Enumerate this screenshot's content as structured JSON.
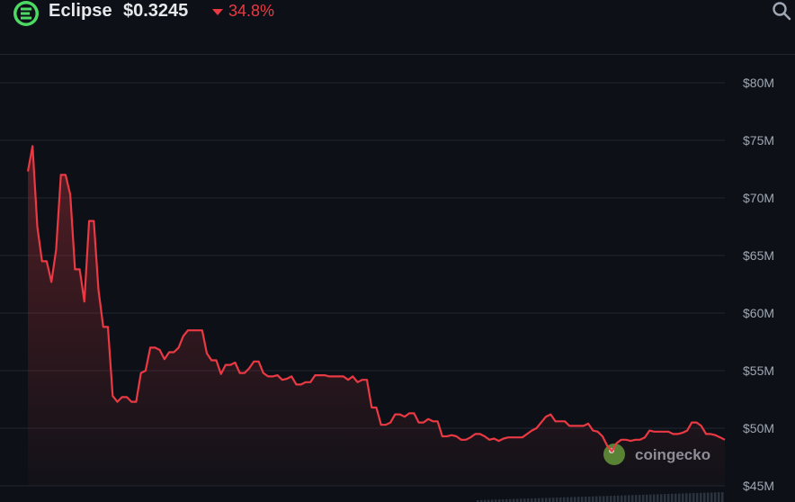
{
  "header": {
    "coin_name": "Eclipse",
    "price": "$0.3245",
    "change": "34.8%",
    "change_direction": "down",
    "logo_icon": "eclipse-logo-icon",
    "search_icon": "search-icon"
  },
  "colors": {
    "background": "#0d1117",
    "line": "#ea3943",
    "grid": "#1f2530",
    "logo": "#4cd964"
  },
  "watermark": "coingecko",
  "chart_data": {
    "type": "area",
    "title": "",
    "xlabel": "",
    "ylabel": "",
    "unit": "USD",
    "ylim": [
      45,
      80
    ],
    "y_ticks": [
      {
        "value": 80,
        "label": "$80M"
      },
      {
        "value": 75,
        "label": "$75M"
      },
      {
        "value": 70,
        "label": "$70M"
      },
      {
        "value": 65,
        "label": "$65M"
      },
      {
        "value": 60,
        "label": "$60M"
      },
      {
        "value": 55,
        "label": "$55M"
      },
      {
        "value": 50,
        "label": "$50M"
      },
      {
        "value": 45,
        "label": "$45M"
      }
    ],
    "grid": true,
    "series": [
      {
        "values": [
          72.3,
          74.5,
          67.5,
          64.5,
          64.5,
          62.7,
          65.5,
          72.0,
          72.0,
          70.3,
          63.8,
          63.8,
          61.0,
          68.0,
          68.0,
          62.0,
          58.8,
          58.8,
          52.8,
          52.3,
          52.7,
          52.7,
          52.3,
          52.3,
          54.8,
          55.0,
          57.0,
          57.0,
          56.8,
          56.0,
          56.6,
          56.6,
          57.0,
          58.0,
          58.5,
          58.5,
          58.5,
          58.5,
          56.5,
          55.9,
          55.9,
          54.7,
          55.5,
          55.5,
          55.7,
          54.8,
          54.8,
          55.2,
          55.8,
          55.8,
          54.8,
          54.5,
          54.5,
          54.6,
          54.2,
          54.3,
          54.5,
          53.8,
          53.8,
          54.0,
          54.0,
          54.6,
          54.6,
          54.6,
          54.5,
          54.5,
          54.5,
          54.5,
          54.2,
          54.5,
          54.0,
          54.2,
          54.2,
          51.8,
          51.8,
          50.3,
          50.3,
          50.5,
          51.2,
          51.2,
          51.0,
          51.3,
          51.3,
          50.5,
          50.5,
          50.8,
          50.6,
          50.6,
          49.3,
          49.3,
          49.4,
          49.3,
          49.0,
          49.0,
          49.2,
          49.5,
          49.5,
          49.3,
          49.0,
          49.1,
          48.9,
          49.1,
          49.2,
          49.2,
          49.2,
          49.2,
          49.5,
          49.8,
          50.0,
          50.5,
          51.0,
          51.2,
          50.6,
          50.6,
          50.6,
          50.2,
          50.2,
          50.2,
          50.2,
          50.4,
          49.8,
          49.7,
          49.3,
          48.5,
          48.0,
          48.7,
          49.0,
          49.0,
          48.9,
          49.0,
          49.0,
          49.2,
          49.8,
          49.7,
          49.7,
          49.7,
          49.7,
          49.5,
          49.5,
          49.6,
          49.8,
          50.5,
          50.5,
          50.2,
          49.5,
          49.5,
          49.4,
          49.2,
          49.0
        ]
      }
    ]
  }
}
